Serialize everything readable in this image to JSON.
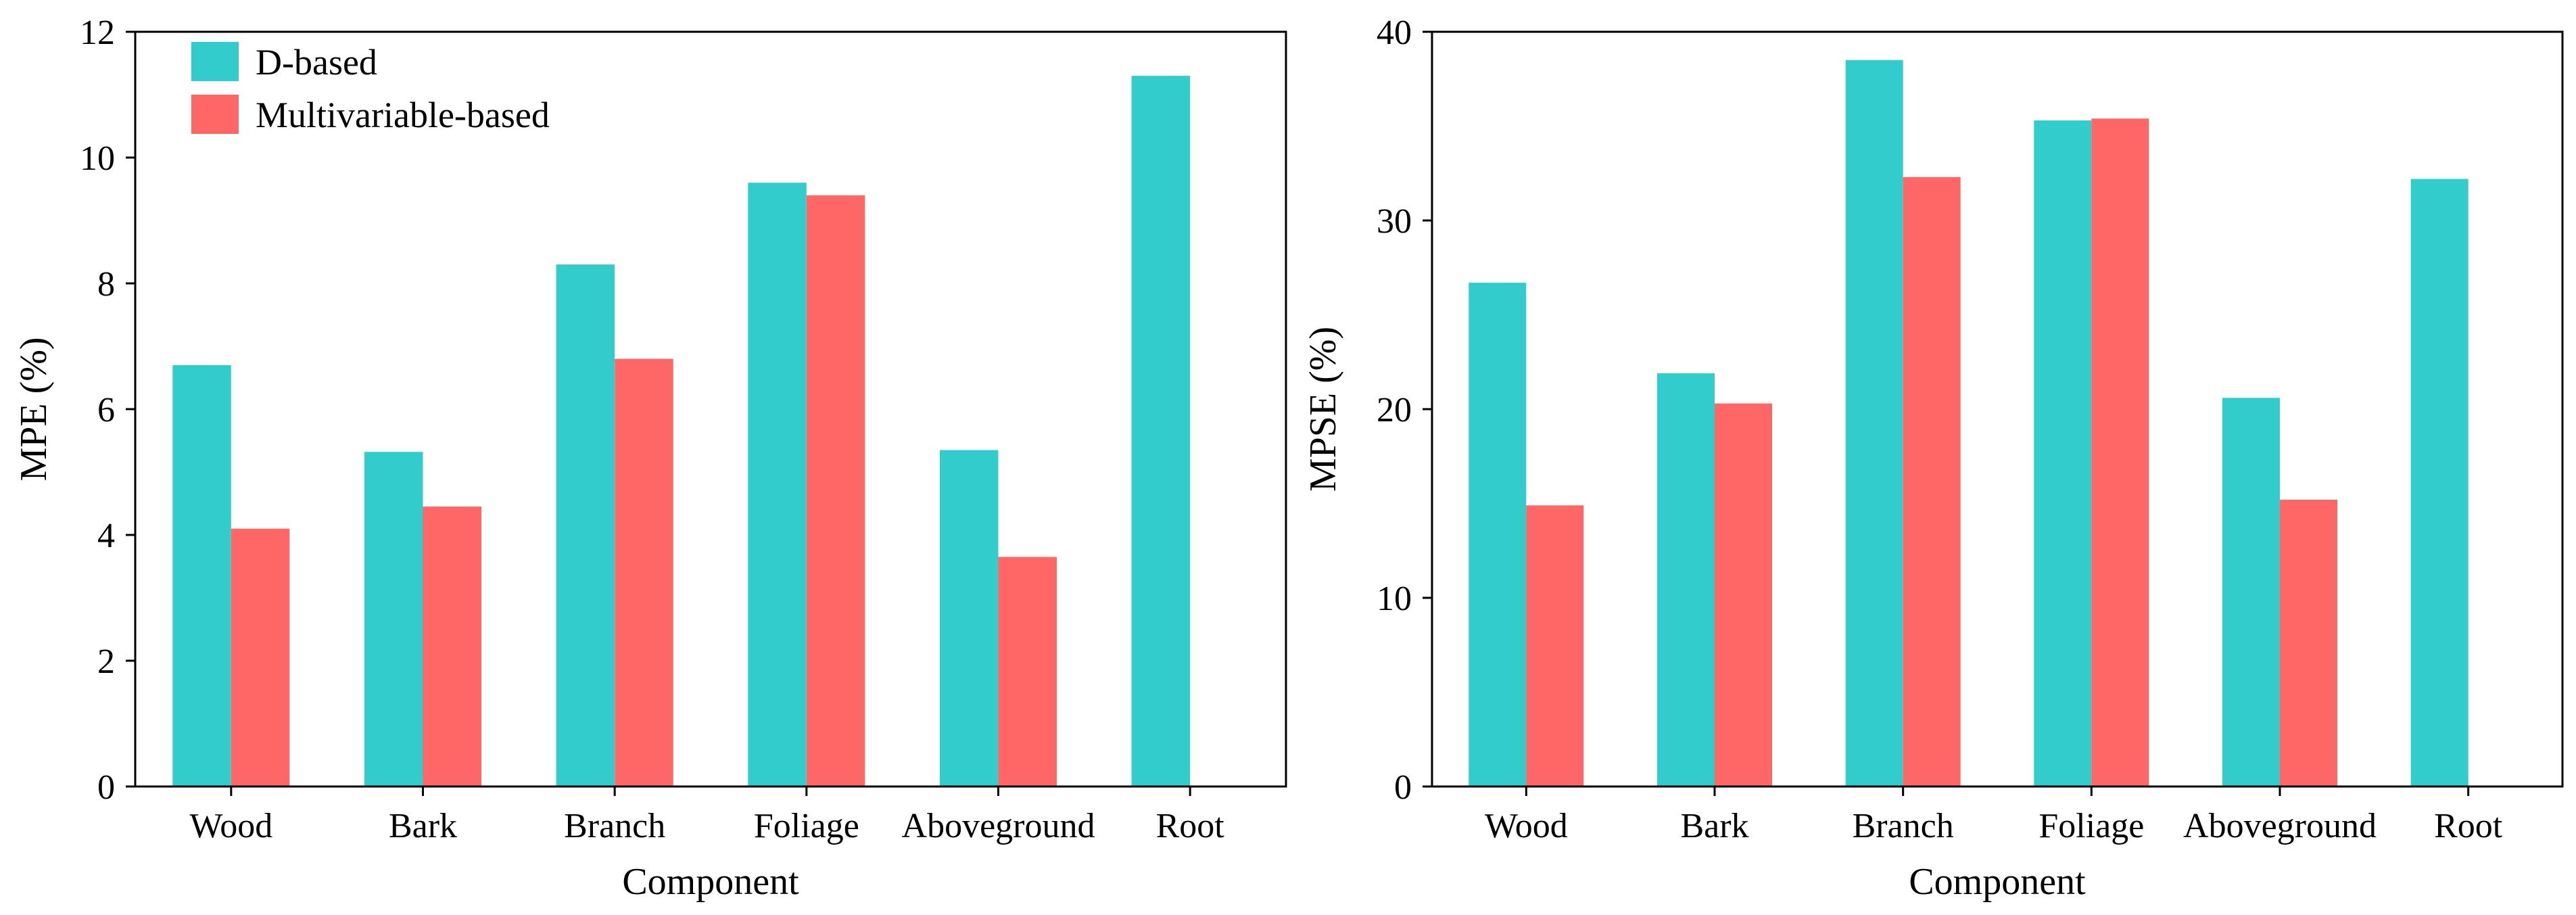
{
  "colors": {
    "d_based": "#33CCCC",
    "multivariable_based": "#FF6666"
  },
  "legend": [
    "D-based",
    "Multivariable-based"
  ],
  "chart_data": [
    {
      "type": "bar",
      "categories": [
        "Wood",
        "Bark",
        "Branch",
        "Foliage",
        "Aboveground",
        "Root"
      ],
      "series": [
        {
          "name": "D-based",
          "values": [
            6.7,
            5.32,
            8.3,
            9.6,
            5.35,
            11.3
          ]
        },
        {
          "name": "Multivariable-based",
          "values": [
            4.1,
            4.45,
            6.8,
            9.4,
            3.65,
            null
          ]
        }
      ],
      "xlabel": "Component",
      "ylabel": "MPE (%)",
      "ylim": [
        0,
        12
      ],
      "yticks": [
        0,
        2,
        4,
        6,
        8,
        10,
        12
      ],
      "legend_position": "top-left"
    },
    {
      "type": "bar",
      "categories": [
        "Wood",
        "Bark",
        "Branch",
        "Foliage",
        "Aboveground",
        "Root"
      ],
      "series": [
        {
          "name": "D-based",
          "values": [
            26.7,
            21.9,
            38.5,
            35.3,
            20.6,
            32.2
          ]
        },
        {
          "name": "Multivariable-based",
          "values": [
            14.9,
            20.3,
            32.3,
            35.4,
            15.2,
            null
          ]
        }
      ],
      "xlabel": "Component",
      "ylabel": "MPSE (%)",
      "ylim": [
        0,
        40
      ],
      "yticks": [
        0,
        10,
        20,
        30,
        40
      ]
    }
  ]
}
